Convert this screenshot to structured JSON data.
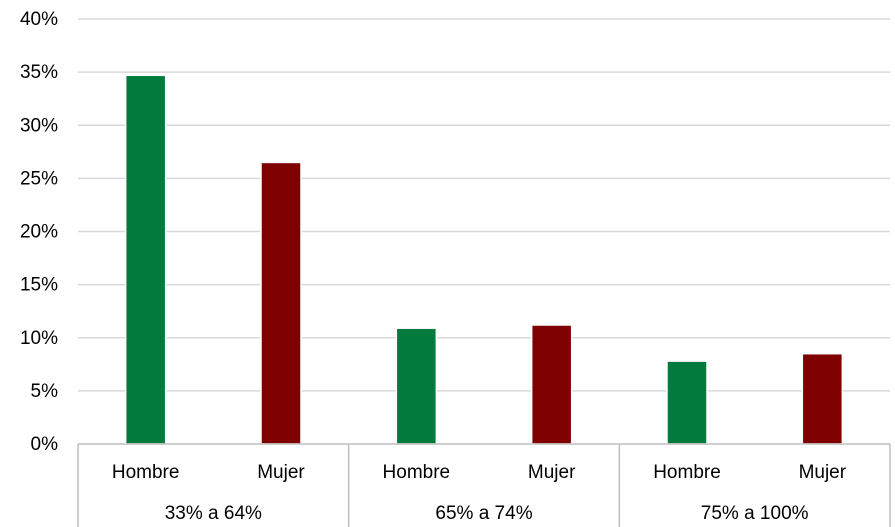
{
  "chart_data": {
    "type": "bar",
    "groups": [
      {
        "label": "33% a 64%",
        "categories": [
          "Hombre",
          "Mujer"
        ],
        "values": [
          34.7,
          26.5
        ]
      },
      {
        "label": "65% a 74%",
        "categories": [
          "Hombre",
          "Mujer"
        ],
        "values": [
          10.9,
          11.2
        ]
      },
      {
        "label": "75% a 100%",
        "categories": [
          "Hombre",
          "Mujer"
        ],
        "values": [
          7.8,
          8.5
        ]
      }
    ],
    "series_colors": {
      "Hombre": "#007a3d",
      "Mujer": "#7f0000"
    },
    "yticks": [
      "0%",
      "5%",
      "10%",
      "15%",
      "20%",
      "25%",
      "30%",
      "35%",
      "40%"
    ],
    "ylim": [
      0,
      40
    ],
    "grid": true,
    "legend": "none"
  }
}
